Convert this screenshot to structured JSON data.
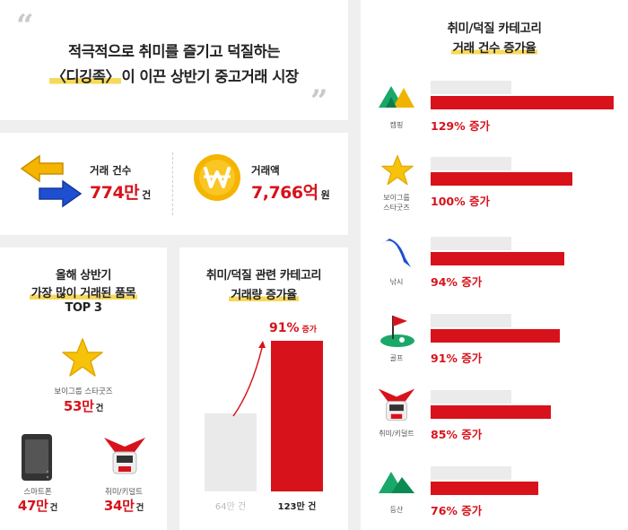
{
  "headline": {
    "quote_open": "“",
    "quote_close": "”",
    "line1": "적극적으로 취미를 즐기고 덕질하는",
    "line2_highlight": "〈디깅족〉",
    "line2_rest": "이 이끈 상반기 중고거래 시장"
  },
  "stats": {
    "count_label": "거래 건수",
    "count_value": "774만",
    "count_unit": "건",
    "amount_label": "거래액",
    "amount_value": "7,766억",
    "amount_unit": "원",
    "count_icon": "exchange-arrows-icon",
    "amount_icon": "won-coin-icon"
  },
  "top3": {
    "title_line1": "올해 상반기",
    "title_line2": "가장 많이 거래된 품목",
    "title_line3": "TOP 3",
    "items": [
      {
        "label": "보이그룹 스타굿즈",
        "value": "53만",
        "unit": "건",
        "icon": "star-icon"
      },
      {
        "label": "스마트폰",
        "value": "47만",
        "unit": "건",
        "icon": "smartphone-icon"
      },
      {
        "label": "취미/키덜트",
        "value": "34만",
        "unit": "건",
        "icon": "robot-icon"
      }
    ]
  },
  "volume": {
    "title_line1": "취미/덕질 관련 카테고리",
    "title_line2": "거래량 증가율",
    "increase_value": "91%",
    "increase_suffix": "증가",
    "before_label": "64만 건",
    "after_label": "123만 건",
    "before": 64,
    "after": 123
  },
  "rates": {
    "title_line1": "취미/덕질 카테고리",
    "title_line2": "거래 건수 증가율",
    "suffix": "증가",
    "items": [
      {
        "label": "캠핑",
        "value": "129%",
        "pct": 129,
        "icon": "camping-tent-icon"
      },
      {
        "label": "보이그룹\n스타굿즈",
        "value": "100%",
        "pct": 100,
        "icon": "star-icon"
      },
      {
        "label": "낚시",
        "value": "94%",
        "pct": 94,
        "icon": "fish-icon"
      },
      {
        "label": "골프",
        "value": "91%",
        "pct": 91,
        "icon": "golf-flag-icon"
      },
      {
        "label": "취미/키덜트",
        "value": "85%",
        "pct": 85,
        "icon": "robot-icon"
      },
      {
        "label": "등산",
        "value": "76%",
        "pct": 76,
        "icon": "mountain-icon"
      }
    ]
  },
  "colors": {
    "accent_red": "#d8121b",
    "highlight_yellow": "#f6d95a",
    "bar_grey": "#ebebeb"
  }
}
